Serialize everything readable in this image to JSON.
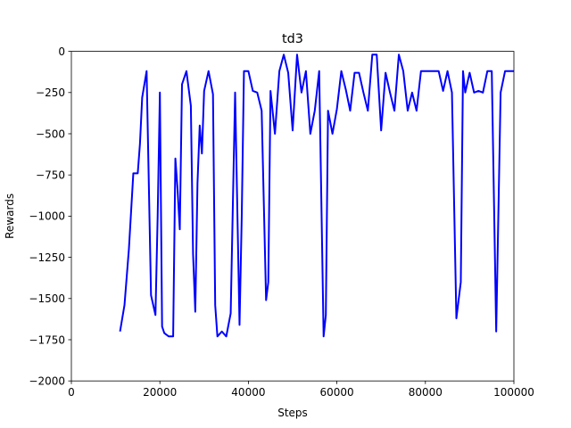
{
  "chart_data": {
    "type": "line",
    "title": "td3",
    "xlabel": "Steps",
    "ylabel": "Rewards",
    "xlim": [
      0,
      100000
    ],
    "ylim": [
      -2000,
      0
    ],
    "xticks": [
      0,
      20000,
      40000,
      60000,
      80000,
      100000
    ],
    "xtick_labels": [
      "0",
      "20000",
      "40000",
      "60000",
      "80000",
      "100000"
    ],
    "yticks": [
      0,
      -250,
      -500,
      -750,
      -1000,
      -1250,
      -1500,
      -1750,
      -2000
    ],
    "ytick_labels": [
      "0",
      "−250",
      "−500",
      "−750",
      "−1000",
      "−1250",
      "−1500",
      "−1750",
      "−2000"
    ],
    "grid": false,
    "legend": "none",
    "series": [
      {
        "color": "#0000ff",
        "x": [
          11000,
          12000,
          13000,
          14000,
          15000,
          15500,
          16000,
          17000,
          18000,
          19000,
          19500,
          20000,
          20500,
          21000,
          22000,
          23000,
          23500,
          24000,
          24500,
          25000,
          26000,
          27000,
          27500,
          28000,
          28500,
          29000,
          29500,
          30000,
          31000,
          32000,
          32500,
          33000,
          34000,
          35000,
          36000,
          37000,
          38000,
          38500,
          39000,
          40000,
          41000,
          42000,
          43000,
          44000,
          44500,
          45000,
          46000,
          47000,
          48000,
          49000,
          50000,
          51000,
          52000,
          53000,
          54000,
          55000,
          56000,
          57000,
          57500,
          58000,
          59000,
          60000,
          61000,
          62000,
          63000,
          64000,
          65000,
          66000,
          67000,
          68000,
          69000,
          70000,
          71000,
          72000,
          73000,
          74000,
          75000,
          76000,
          77000,
          78000,
          79000,
          80000,
          81000,
          82000,
          83000,
          84000,
          85000,
          86000,
          87000,
          88000,
          88500,
          89000,
          90000,
          91000,
          92000,
          93000,
          94000,
          95000,
          96000,
          97000,
          98000,
          99000,
          100000
        ],
        "y": [
          -1700,
          -1540,
          -1200,
          -740,
          -740,
          -560,
          -280,
          -120,
          -1480,
          -1600,
          -1000,
          -250,
          -1670,
          -1710,
          -1730,
          -1730,
          -650,
          -840,
          -1080,
          -200,
          -120,
          -330,
          -1230,
          -1580,
          -800,
          -450,
          -620,
          -240,
          -120,
          -260,
          -1540,
          -1730,
          -1700,
          -1730,
          -1590,
          -250,
          -1660,
          -1000,
          -120,
          -120,
          -240,
          -250,
          -360,
          -1510,
          -1400,
          -240,
          -500,
          -120,
          -20,
          -130,
          -480,
          -20,
          -250,
          -120,
          -500,
          -360,
          -120,
          -1730,
          -1600,
          -360,
          -500,
          -350,
          -120,
          -230,
          -360,
          -130,
          -130,
          -250,
          -360,
          -20,
          -20,
          -480,
          -130,
          -250,
          -360,
          -20,
          -120,
          -360,
          -250,
          -360,
          -120,
          -120,
          -120,
          -120,
          -120,
          -240,
          -120,
          -250,
          -1620,
          -1400,
          -120,
          -250,
          -130,
          -250,
          -240,
          -250,
          -120,
          -120,
          -1700,
          -250,
          -120,
          -120,
          -120
        ]
      }
    ]
  }
}
